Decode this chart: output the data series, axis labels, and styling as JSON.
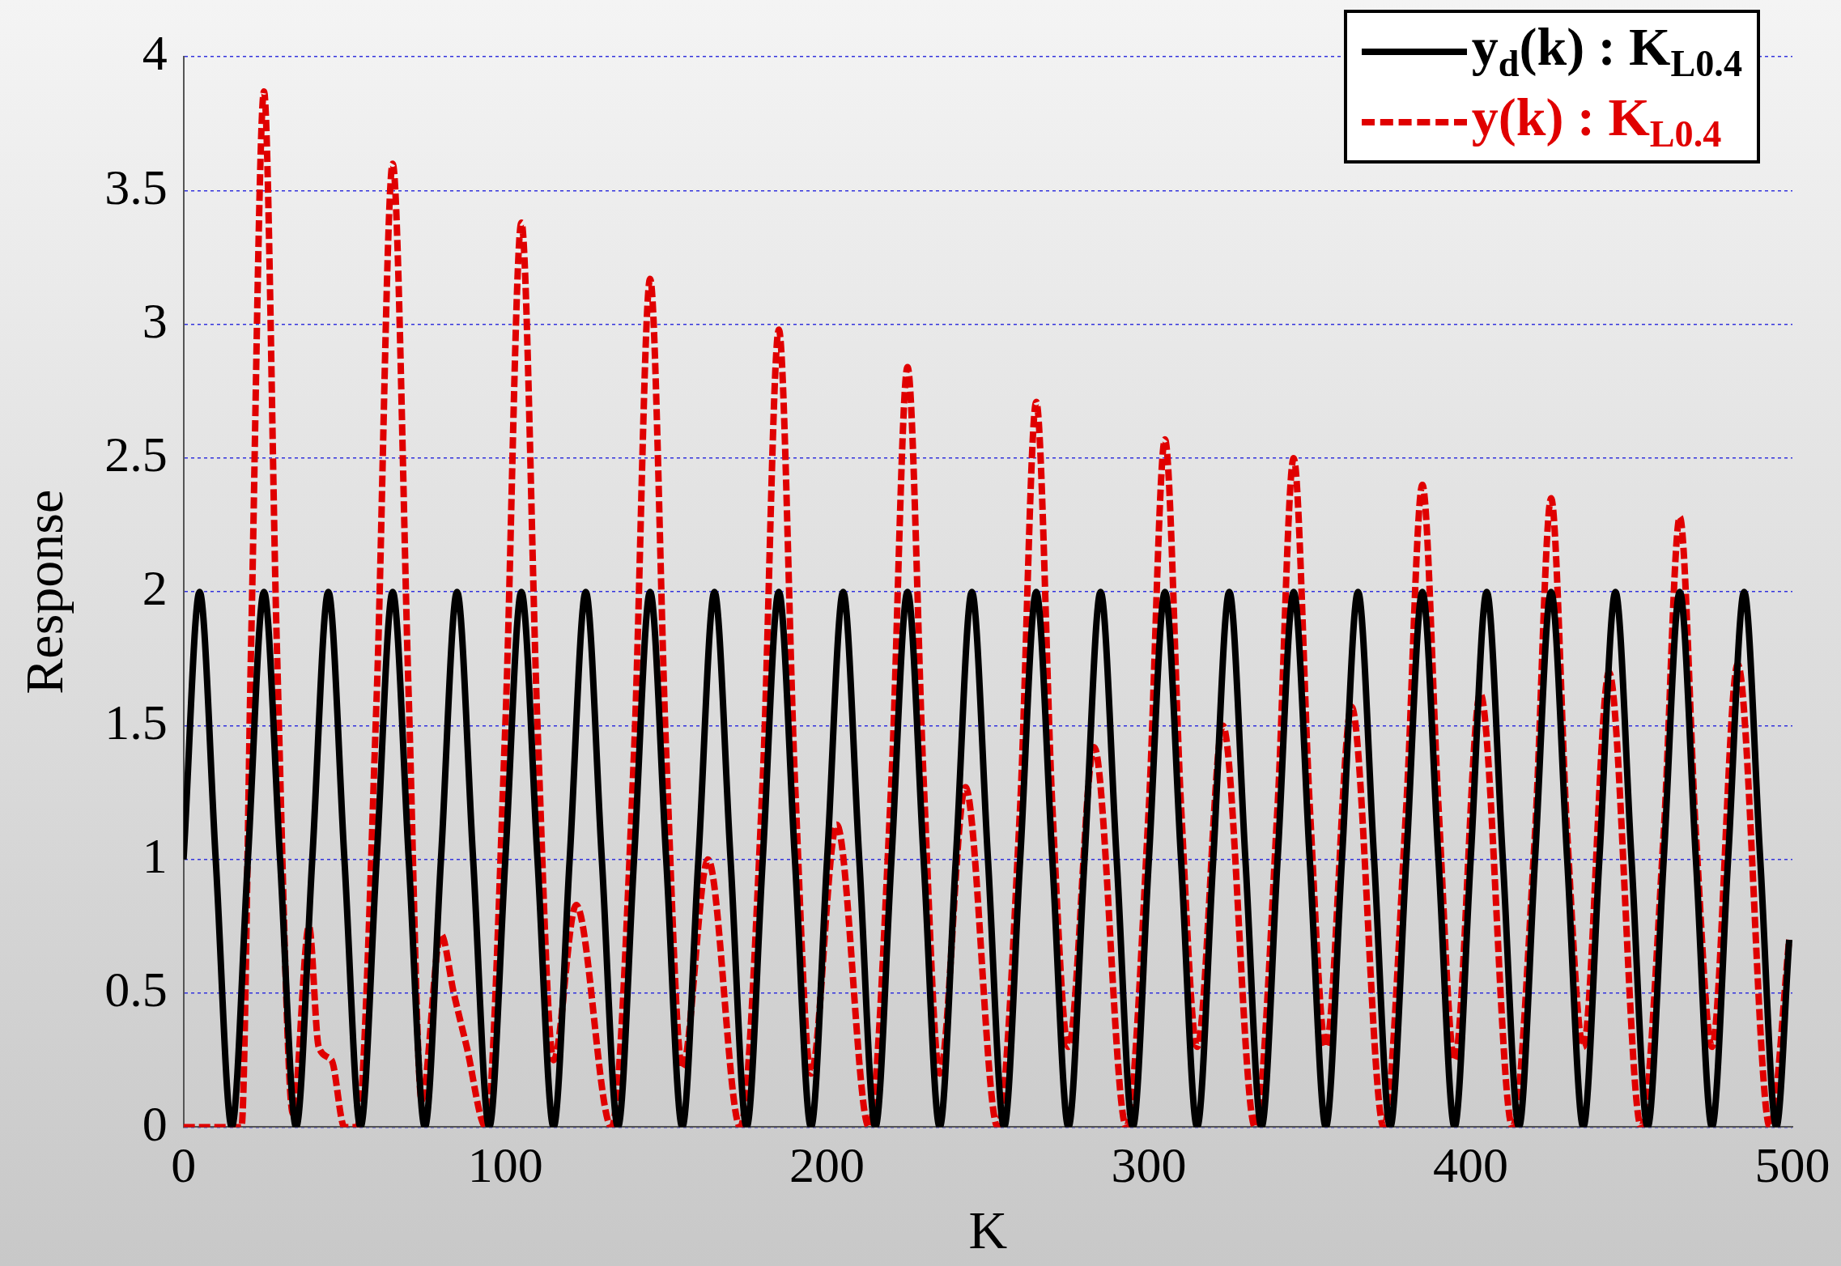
{
  "chart_data": {
    "type": "line",
    "xlabel": "K",
    "ylabel": "Response",
    "xlim": [
      0,
      500
    ],
    "ylim": [
      0,
      4
    ],
    "xticks": [
      0,
      100,
      200,
      300,
      400,
      500
    ],
    "yticks": [
      0,
      0.5,
      1,
      1.5,
      2,
      2.5,
      3,
      3.5,
      4
    ],
    "grid": "y",
    "legend": "top right",
    "marker": "none",
    "series": [
      {
        "name": "y$_{d}$(k) : K$_{L0.4}$",
        "color": "#000000",
        "line_style": "solid",
        "x": [
          0,
          5,
          10,
          15,
          20,
          25,
          30,
          35,
          40,
          45,
          50,
          55,
          60,
          65,
          70,
          75,
          80,
          85,
          90,
          95,
          100,
          105,
          110,
          115,
          120,
          125,
          130,
          135,
          140,
          145,
          150,
          155,
          160,
          165,
          170,
          175,
          180,
          185,
          190,
          195,
          200,
          205,
          210,
          215,
          220,
          225,
          230,
          235,
          240,
          245,
          250,
          255,
          260,
          265,
          270,
          275,
          280,
          285,
          290,
          295,
          300,
          305,
          310,
          315,
          320,
          325,
          330,
          335,
          340,
          345,
          350,
          355,
          360,
          365,
          370,
          375,
          380,
          385,
          390,
          395,
          400,
          405,
          410,
          415,
          420,
          425,
          430,
          435,
          440,
          445,
          450,
          455,
          460,
          465,
          470,
          475,
          480,
          485,
          490,
          495,
          499
        ],
        "values": [
          1,
          2,
          1,
          0,
          1,
          2,
          1,
          0,
          1,
          2,
          1,
          0,
          1,
          2,
          1,
          0,
          1,
          2,
          1,
          0,
          1,
          2,
          1,
          0,
          1,
          2,
          1,
          0,
          1,
          2,
          1,
          0,
          1,
          2,
          1,
          0,
          1,
          2,
          1,
          0,
          1,
          2,
          1,
          0,
          1,
          2,
          1,
          0,
          1,
          2,
          1,
          0,
          1,
          2,
          1,
          0,
          1,
          2,
          1,
          0,
          1,
          2,
          1,
          0,
          1,
          2,
          1,
          0,
          1,
          2,
          1,
          0,
          1,
          2,
          1,
          0,
          1,
          2,
          1,
          0,
          1,
          2,
          1,
          0,
          1,
          2,
          1,
          0,
          1,
          2,
          1,
          0,
          1,
          2,
          1,
          0,
          1,
          2,
          1,
          0,
          0.7
        ]
      },
      {
        "name": "y(k) : K$_{L0.4}$",
        "color": "#e00000",
        "line_style": "dashed",
        "x": [
          0,
          18,
          21,
          25,
          29,
          34,
          39,
          42,
          46,
          50,
          54,
          60,
          65,
          70,
          74,
          80,
          84,
          88,
          94,
          100,
          105,
          110,
          115,
          122,
          133,
          140,
          145,
          150,
          155,
          163,
          173,
          180,
          185,
          190,
          195,
          203,
          213,
          220,
          225,
          230,
          235,
          243,
          253,
          260,
          265,
          270,
          275,
          283,
          293,
          300,
          305,
          310,
          315,
          323,
          333,
          340,
          345,
          350,
          355,
          363,
          373,
          380,
          385,
          390,
          395,
          403,
          413,
          420,
          425,
          430,
          435,
          443,
          453,
          460,
          465,
          470,
          475,
          483,
          493,
          499
        ],
        "values": [
          0,
          0,
          1.8,
          3.87,
          1.8,
          0.05,
          0.75,
          0.3,
          0.25,
          0,
          0,
          1.6,
          3.6,
          1.6,
          0.1,
          0.72,
          0.5,
          0.3,
          0,
          1.5,
          3.38,
          1.5,
          0.25,
          0.83,
          0,
          1.4,
          3.17,
          1.4,
          0.22,
          1.0,
          0,
          1.3,
          2.98,
          1.3,
          0.2,
          1.13,
          0,
          1.3,
          2.84,
          1.3,
          0.2,
          1.27,
          0,
          1.2,
          2.71,
          1.2,
          0.3,
          1.42,
          0,
          1.2,
          2.57,
          1.2,
          0.3,
          1.5,
          0,
          1.2,
          2.5,
          1.2,
          0.3,
          1.57,
          0,
          1.2,
          2.4,
          1.2,
          0.25,
          1.62,
          0,
          1.1,
          2.35,
          1.1,
          0.3,
          1.7,
          0,
          1.1,
          2.28,
          1.1,
          0.3,
          1.73,
          0,
          0.7
        ]
      }
    ]
  }
}
